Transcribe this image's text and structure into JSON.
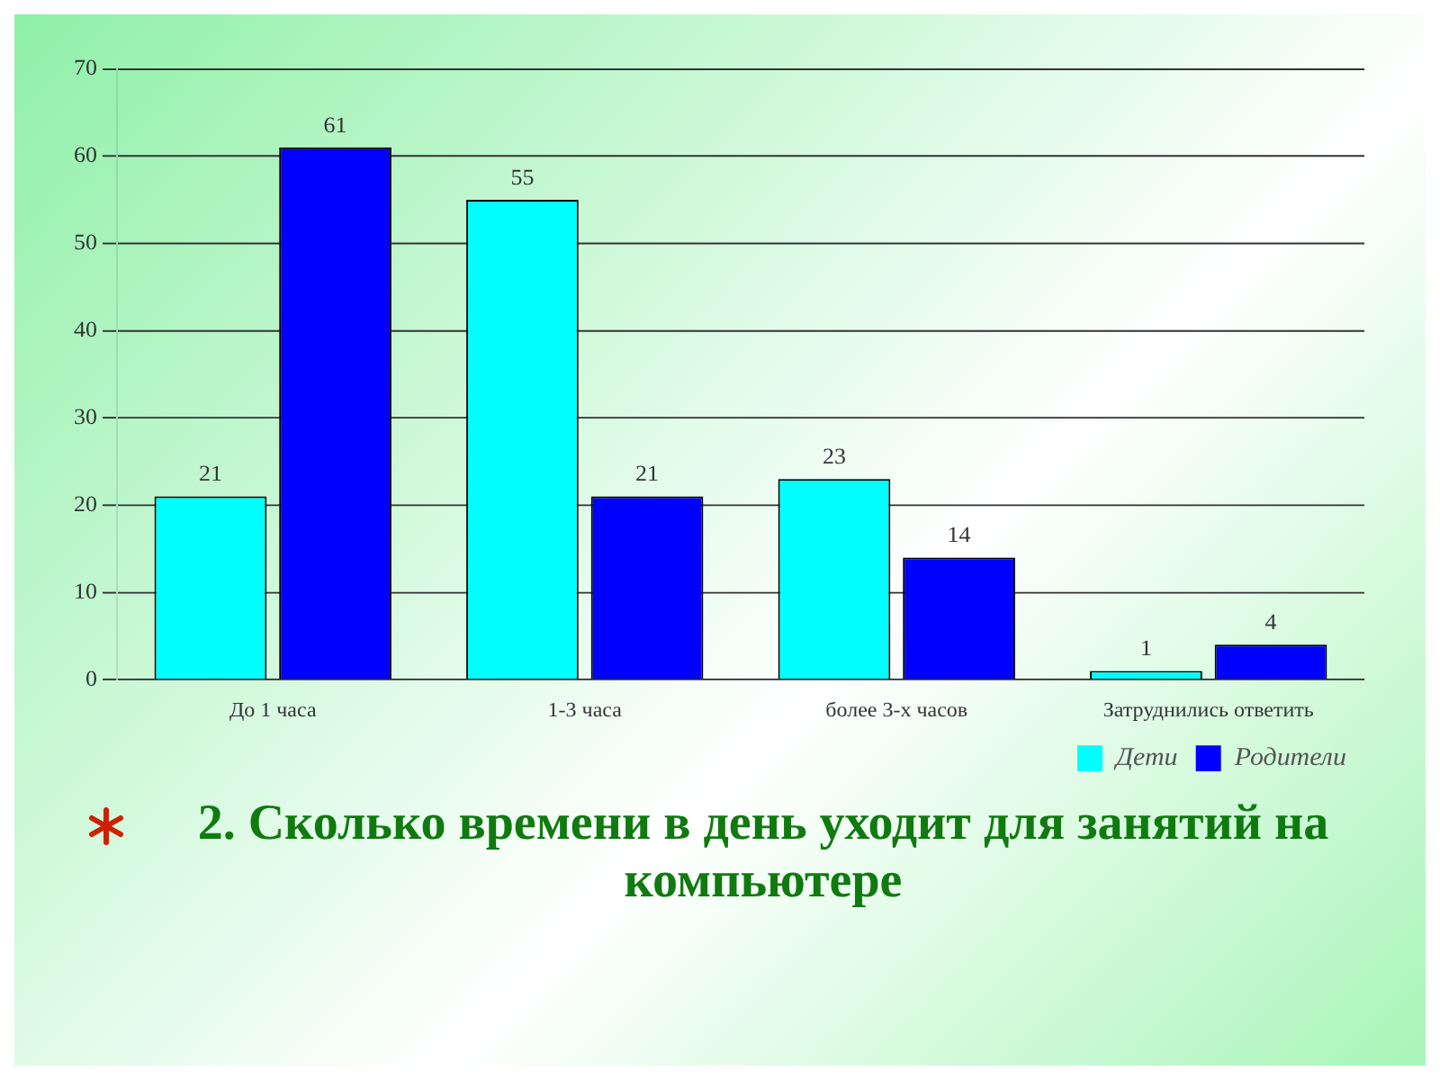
{
  "chart_data": {
    "type": "bar",
    "title": "2. Сколько времени в день уходит для занятий на компьютере",
    "categories": [
      "До 1 часа",
      "1-3 часа",
      "более 3-х часов",
      "Затруднились ответить"
    ],
    "series": [
      {
        "name": "Дети",
        "color": "#00ffff",
        "values": [
          21,
          55,
          23,
          1
        ]
      },
      {
        "name": "Родители",
        "color": "#0000ff",
        "values": [
          61,
          21,
          14,
          4
        ]
      }
    ],
    "ylim": [
      0,
      70
    ],
    "yticks": [
      0,
      10,
      20,
      30,
      40,
      50,
      60,
      70
    ],
    "grid": "y",
    "legend": "bottom right",
    "data_labels": true
  }
}
